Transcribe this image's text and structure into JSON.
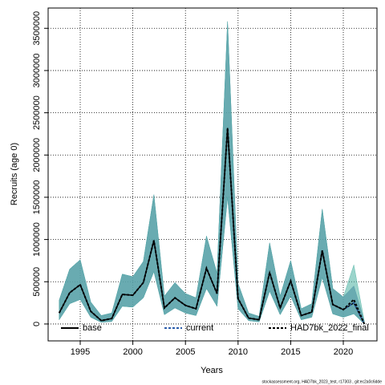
{
  "chart_data": {
    "type": "band-line",
    "xlabel": "Years",
    "ylabel": "Recruits (age 0)",
    "footnote": "stockassessment.org, HAD7bk_2023_test, r17303 , git:ec2a0c6dde",
    "x": [
      1993,
      1994,
      1995,
      1996,
      1997,
      1998,
      1999,
      2000,
      2001,
      2002,
      2003,
      2004,
      2005,
      2006,
      2007,
      2008,
      2009,
      2010,
      2011,
      2012,
      2013,
      2014,
      2015,
      2016,
      2017,
      2018,
      2019,
      2020,
      2021,
      2022
    ],
    "xlim": [
      1991.95,
      2023.2
    ],
    "xticks": [
      1995,
      2000,
      2005,
      2010,
      2015,
      2020
    ],
    "ylim": [
      -200000,
      3740000
    ],
    "yticks": [
      0,
      500000,
      1000000,
      1500000,
      2000000,
      2500000,
      3000000,
      3500000
    ],
    "grid": true,
    "legend": "bottom",
    "series": [
      {
        "name": "base",
        "color": "#000000",
        "band_color": "#8a8aa8",
        "dash": false,
        "values": [
          130000,
          370000,
          465000,
          150000,
          40000,
          65000,
          350000,
          340000,
          490000,
          990000,
          190000,
          310000,
          220000,
          180000,
          660000,
          360000,
          2320000,
          300000,
          70000,
          50000,
          610000,
          190000,
          510000,
          100000,
          140000,
          870000,
          230000,
          170000,
          250000,
          0
        ],
        "upper": [
          280000,
          650000,
          760000,
          260000,
          100000,
          130000,
          590000,
          560000,
          740000,
          1530000,
          330000,
          490000,
          360000,
          310000,
          1040000,
          600000,
          3580000,
          480000,
          130000,
          90000,
          960000,
          330000,
          750000,
          180000,
          240000,
          1360000,
          420000,
          320000,
          450000,
          30000
        ],
        "lower": [
          50000,
          240000,
          290000,
          80000,
          20000,
          30000,
          210000,
          200000,
          310000,
          620000,
          110000,
          190000,
          130000,
          100000,
          420000,
          210000,
          1500000,
          180000,
          40000,
          25000,
          390000,
          110000,
          330000,
          50000,
          80000,
          550000,
          120000,
          80000,
          120000,
          0
        ]
      },
      {
        "name": "current",
        "color": "#2a5caa",
        "band_color": "#6a8fc0",
        "dash": true,
        "values": [
          130000,
          370000,
          465000,
          150000,
          40000,
          65000,
          350000,
          340000,
          490000,
          990000,
          190000,
          310000,
          220000,
          180000,
          660000,
          360000,
          2320000,
          300000,
          70000,
          50000,
          610000,
          190000,
          510000,
          100000,
          140000,
          870000,
          230000,
          170000,
          250000,
          0
        ],
        "upper": [
          280000,
          650000,
          760000,
          260000,
          100000,
          130000,
          590000,
          560000,
          740000,
          1530000,
          330000,
          490000,
          360000,
          310000,
          1040000,
          600000,
          3580000,
          480000,
          130000,
          90000,
          960000,
          330000,
          750000,
          180000,
          240000,
          1360000,
          420000,
          320000,
          450000,
          30000
        ],
        "lower": [
          50000,
          240000,
          290000,
          80000,
          20000,
          30000,
          210000,
          200000,
          310000,
          620000,
          110000,
          190000,
          130000,
          100000,
          420000,
          210000,
          1500000,
          180000,
          40000,
          25000,
          390000,
          110000,
          330000,
          50000,
          80000,
          550000,
          120000,
          80000,
          120000,
          0
        ]
      },
      {
        "name": "HAD7bk_2022_final",
        "color": "#000000",
        "band_color": "#48b0a0",
        "dash": true,
        "values": [
          130000,
          370000,
          465000,
          150000,
          40000,
          65000,
          350000,
          340000,
          490000,
          990000,
          190000,
          310000,
          220000,
          180000,
          660000,
          360000,
          2320000,
          300000,
          70000,
          50000,
          610000,
          190000,
          510000,
          100000,
          140000,
          870000,
          230000,
          170000,
          290000,
          0
        ],
        "upper": [
          280000,
          650000,
          760000,
          260000,
          100000,
          130000,
          590000,
          560000,
          740000,
          1530000,
          330000,
          490000,
          360000,
          310000,
          1040000,
          600000,
          3580000,
          480000,
          130000,
          90000,
          960000,
          330000,
          750000,
          180000,
          240000,
          1360000,
          420000,
          320000,
          700000,
          30000
        ],
        "lower": [
          50000,
          240000,
          290000,
          80000,
          20000,
          30000,
          210000,
          200000,
          310000,
          620000,
          110000,
          190000,
          130000,
          100000,
          420000,
          210000,
          1500000,
          180000,
          40000,
          25000,
          390000,
          110000,
          330000,
          50000,
          80000,
          550000,
          120000,
          80000,
          120000,
          0
        ]
      }
    ]
  }
}
